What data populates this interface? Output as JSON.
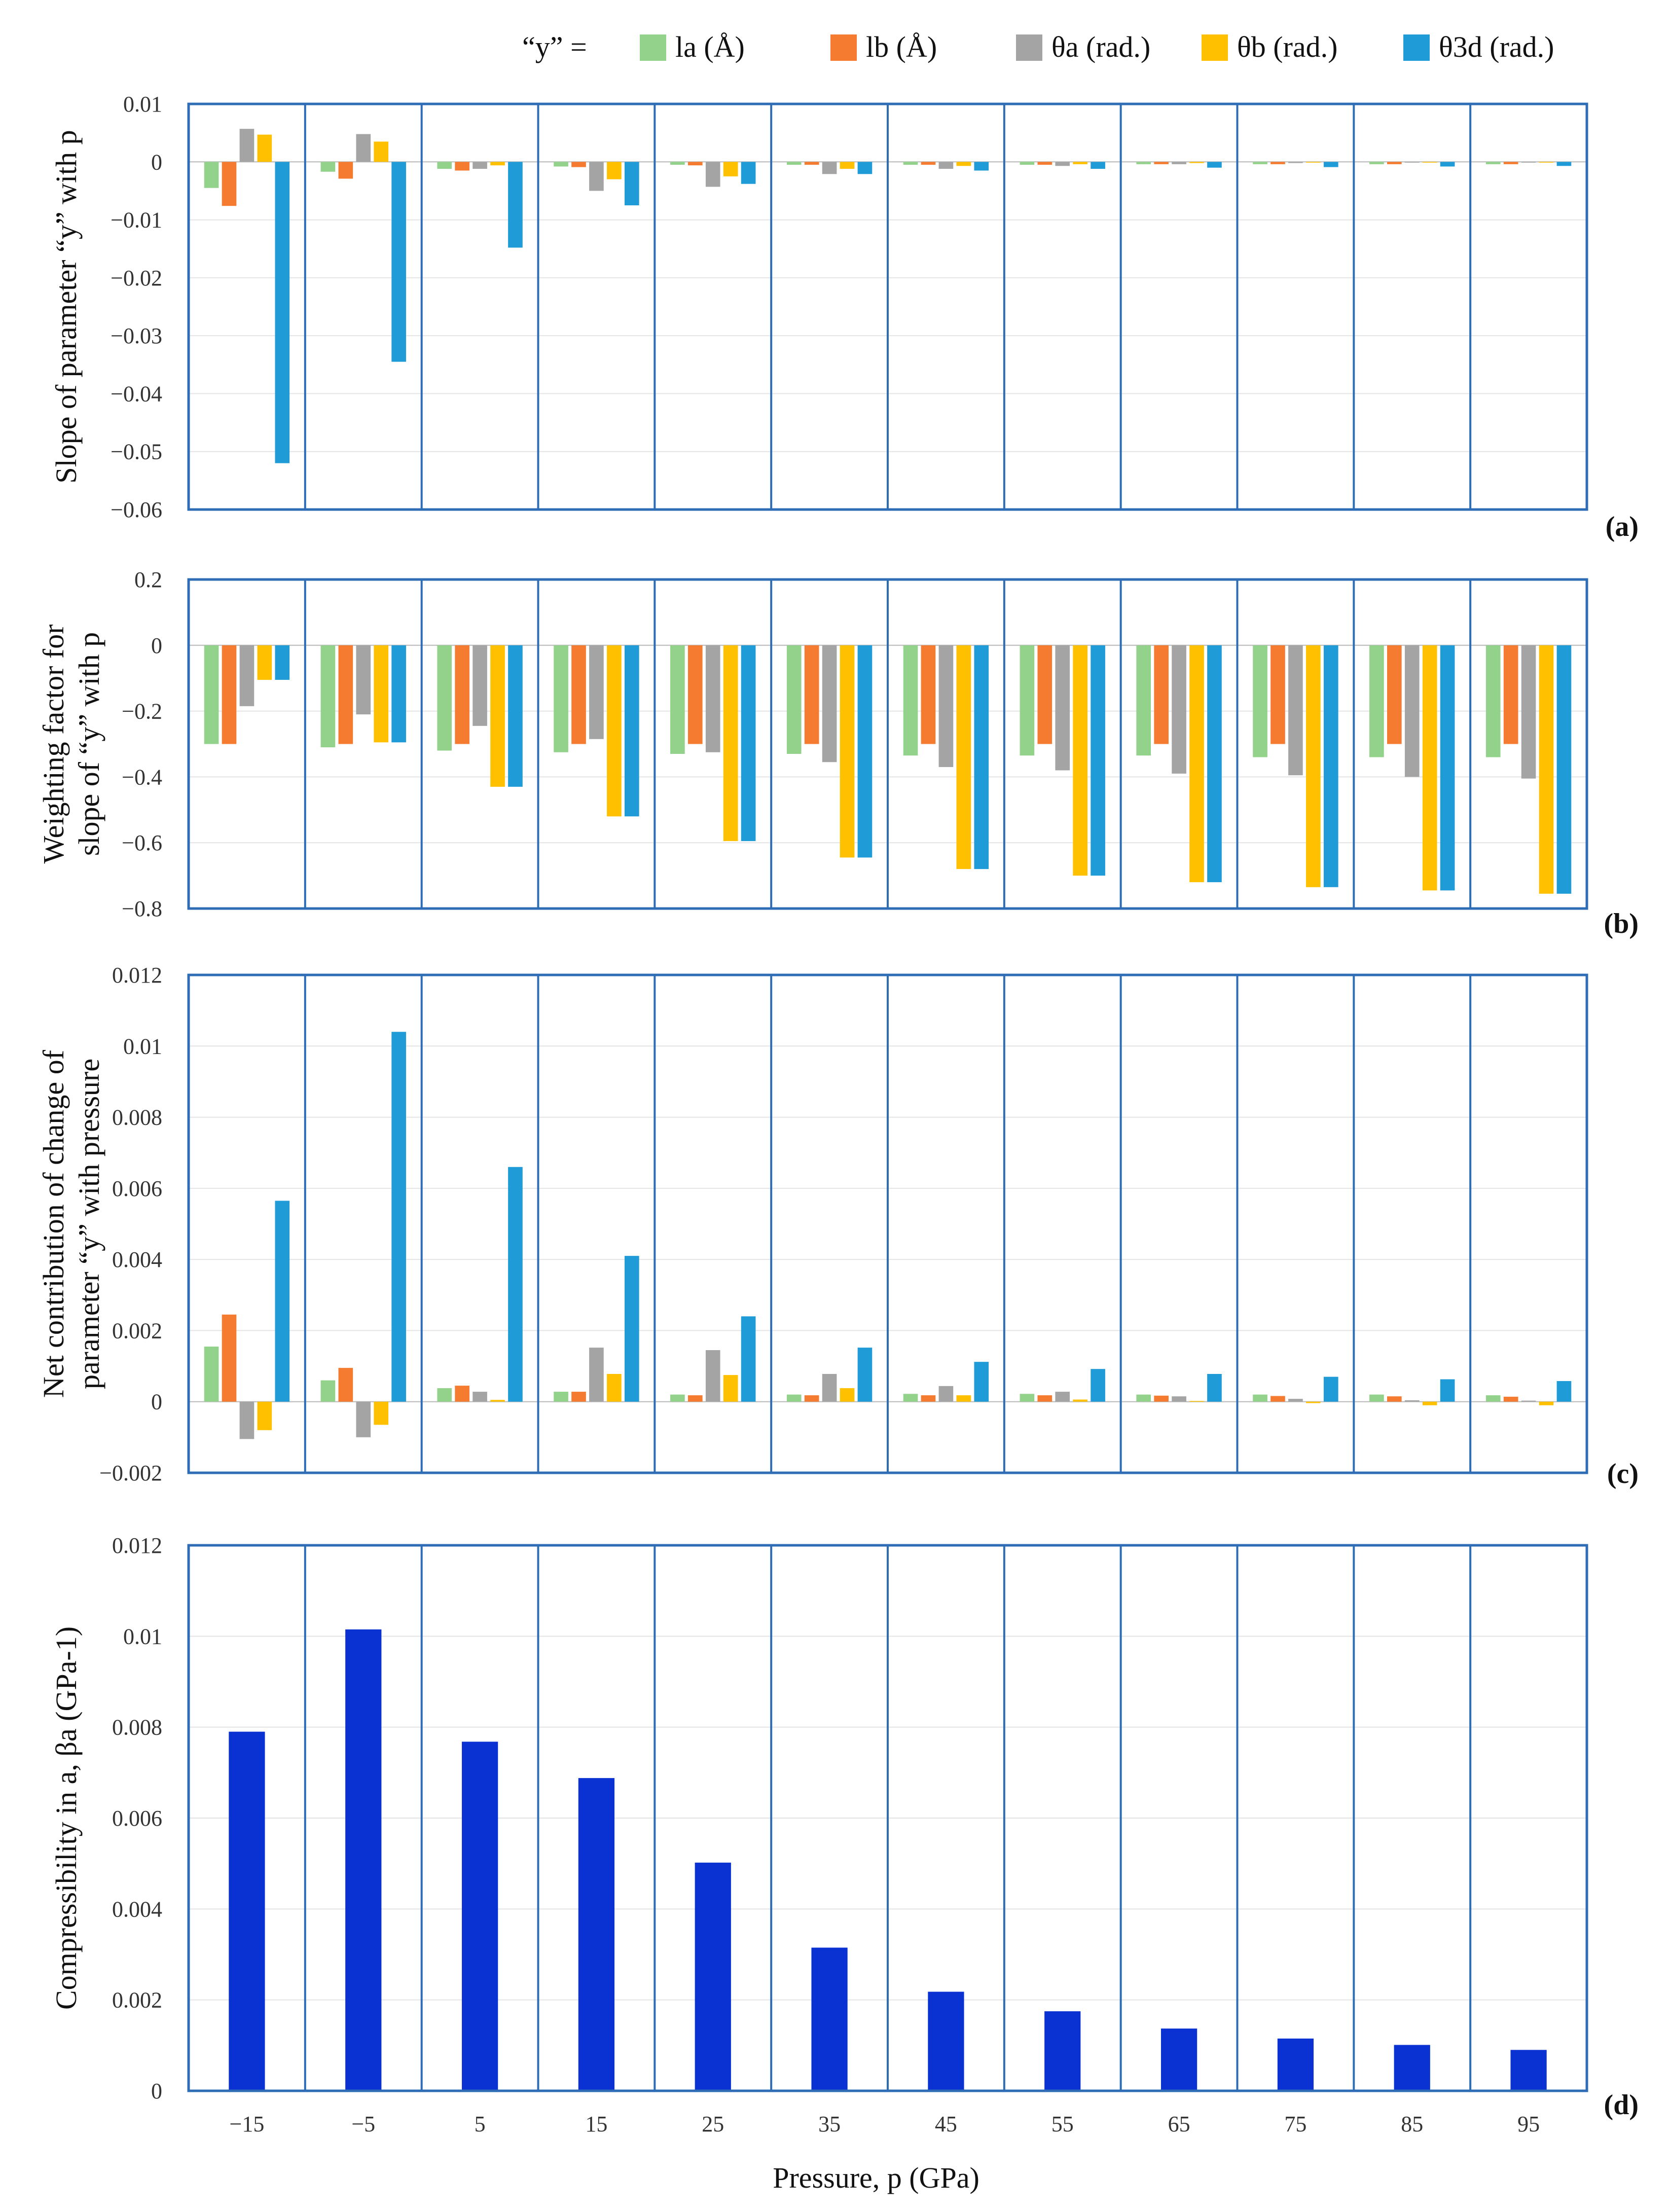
{
  "figure": {
    "legend_prefix": "“y” =",
    "x_axis_label": "Pressure, p (GPa)",
    "categories": [
      "−15",
      "−5",
      "5",
      "15",
      "25",
      "35",
      "45",
      "55",
      "65",
      "75",
      "85",
      "95"
    ]
  },
  "legend": [
    {
      "label": "la (Å)",
      "color": "#92d28a"
    },
    {
      "label": "lb (Å)",
      "color": "#f47b2f"
    },
    {
      "label": "θa (rad.)",
      "color": "#a4a4a4"
    },
    {
      "label": "θb (rad.)",
      "color": "#ffc000"
    },
    {
      "label": "θ3d (rad.)",
      "color": "#1f9bd7"
    }
  ],
  "chart_data": [
    {
      "panel": "(a)",
      "type": "bar",
      "ylabel": "Slope of parameter “y” with p",
      "ylim": [
        -0.06,
        0.01
      ],
      "yticks": [
        "0.01",
        "0",
        "−0.01",
        "−0.02",
        "−0.03",
        "−0.04",
        "−0.05",
        "−0.06"
      ],
      "yticks_values": [
        0.01,
        0,
        -0.01,
        -0.02,
        -0.03,
        -0.04,
        -0.05,
        -0.06
      ],
      "categories": [
        "−15",
        "−5",
        "5",
        "15",
        "25",
        "35",
        "45",
        "55",
        "65",
        "75",
        "85",
        "95"
      ],
      "series": [
        {
          "name": "la (Å)",
          "values": [
            -0.0045,
            -0.0017,
            -0.0012,
            -0.0008,
            -0.0005,
            -0.0005,
            -0.0005,
            -0.0005,
            -0.0004,
            -0.0004,
            -0.0004,
            -0.0004
          ]
        },
        {
          "name": "lb (Å)",
          "values": [
            -0.0076,
            -0.0029,
            -0.0015,
            -0.0009,
            -0.0006,
            -0.0005,
            -0.0005,
            -0.0005,
            -0.0004,
            -0.0004,
            -0.0004,
            -0.0004
          ]
        },
        {
          "name": "θa (rad.)",
          "values": [
            0.0057,
            0.0048,
            -0.0012,
            -0.005,
            -0.0043,
            -0.0021,
            -0.0012,
            -0.0007,
            -0.0004,
            -0.0002,
            -0.0001,
            -0.0001
          ]
        },
        {
          "name": "θb (rad.)",
          "values": [
            0.0047,
            0.0035,
            -0.0006,
            -0.003,
            -0.0025,
            -0.0012,
            -0.0007,
            -0.0004,
            -0.0002,
            -0.0001,
            -0.0001,
            -0.0001
          ]
        },
        {
          "name": "θ3d (rad.)",
          "values": [
            -0.052,
            -0.0345,
            -0.0148,
            -0.0075,
            -0.0038,
            -0.0021,
            -0.0015,
            -0.0012,
            -0.001,
            -0.0009,
            -0.0008,
            -0.0007
          ]
        }
      ]
    },
    {
      "panel": "(b)",
      "type": "bar",
      "ylabel": "Weighting factor for slope of “y” with p",
      "ylim": [
        -0.8,
        0.2
      ],
      "yticks": [
        "0.2",
        "0",
        "−0.2",
        "−0.4",
        "−0.6",
        "−0.8"
      ],
      "yticks_values": [
        0.2,
        0,
        -0.2,
        -0.4,
        -0.6,
        -0.8
      ],
      "categories": [
        "−15",
        "−5",
        "5",
        "15",
        "25",
        "35",
        "45",
        "55",
        "65",
        "75",
        "85",
        "95"
      ],
      "series": [
        {
          "name": "la (Å)",
          "values": [
            -0.3,
            -0.31,
            -0.32,
            -0.325,
            -0.33,
            -0.33,
            -0.335,
            -0.335,
            -0.335,
            -0.34,
            -0.34,
            -0.34
          ]
        },
        {
          "name": "lb (Å)",
          "values": [
            -0.3,
            -0.3,
            -0.3,
            -0.3,
            -0.3,
            -0.3,
            -0.3,
            -0.3,
            -0.3,
            -0.3,
            -0.3,
            -0.3
          ]
        },
        {
          "name": "θa (rad.)",
          "values": [
            -0.185,
            -0.21,
            -0.245,
            -0.285,
            -0.325,
            -0.355,
            -0.37,
            -0.38,
            -0.39,
            -0.395,
            -0.4,
            -0.405
          ]
        },
        {
          "name": "θb (rad.)",
          "values": [
            -0.105,
            -0.295,
            -0.43,
            -0.52,
            -0.595,
            -0.645,
            -0.68,
            -0.7,
            -0.72,
            -0.735,
            -0.745,
            -0.755
          ]
        },
        {
          "name": "θ3d (rad.)",
          "values": [
            -0.105,
            -0.295,
            -0.43,
            -0.52,
            -0.595,
            -0.645,
            -0.68,
            -0.7,
            -0.72,
            -0.735,
            -0.745,
            -0.755
          ]
        }
      ]
    },
    {
      "panel": "(c)",
      "type": "bar",
      "ylabel": "Net contribution of change of parameter “y” with pressure",
      "ylim": [
        -0.002,
        0.012
      ],
      "yticks": [
        "0.012",
        "0.01",
        "0.008",
        "0.006",
        "0.004",
        "0.002",
        "0",
        "−0.002"
      ],
      "yticks_values": [
        0.012,
        0.01,
        0.008,
        0.006,
        0.004,
        0.002,
        0,
        -0.002
      ],
      "categories": [
        "−15",
        "−5",
        "5",
        "15",
        "25",
        "35",
        "45",
        "55",
        "65",
        "75",
        "85",
        "95"
      ],
      "series": [
        {
          "name": "la (Å)",
          "values": [
            0.00155,
            0.0006,
            0.00038,
            0.00028,
            0.0002,
            0.0002,
            0.00022,
            0.00022,
            0.0002,
            0.0002,
            0.0002,
            0.00018
          ]
        },
        {
          "name": "lb (Å)",
          "values": [
            0.00245,
            0.00095,
            0.00045,
            0.00028,
            0.00018,
            0.00018,
            0.00018,
            0.00018,
            0.00017,
            0.00016,
            0.00015,
            0.00014
          ]
        },
        {
          "name": "θa (rad.)",
          "values": [
            -0.00105,
            -0.001,
            0.00028,
            0.00152,
            0.00145,
            0.00078,
            0.00044,
            0.00028,
            0.00015,
            8e-05,
            4e-05,
            3e-05
          ]
        },
        {
          "name": "θb (rad.)",
          "values": [
            -0.0008,
            -0.00065,
            5e-05,
            0.00078,
            0.00075,
            0.00038,
            0.00018,
            6e-05,
            2e-05,
            -4e-05,
            -0.0001,
            -0.0001
          ]
        },
        {
          "name": "θ3d (rad.)",
          "values": [
            0.00565,
            0.0104,
            0.0066,
            0.0041,
            0.0024,
            0.00152,
            0.00112,
            0.00092,
            0.00078,
            0.0007,
            0.00063,
            0.00058
          ]
        }
      ]
    },
    {
      "panel": "(d)",
      "type": "bar",
      "ylabel": "Compressibility in a, βa (GPa-1)",
      "ylim": [
        0,
        0.012
      ],
      "yticks": [
        "0.012",
        "0.01",
        "0.008",
        "0.006",
        "0.004",
        "0.002",
        "0"
      ],
      "yticks_values": [
        0.012,
        0.01,
        0.008,
        0.006,
        0.004,
        0.002,
        0
      ],
      "categories": [
        "−15",
        "−5",
        "5",
        "15",
        "25",
        "35",
        "45",
        "55",
        "65",
        "75",
        "85",
        "95"
      ],
      "series": [
        {
          "name": "βa",
          "values": [
            0.0079,
            0.01015,
            0.00768,
            0.00688,
            0.00502,
            0.00315,
            0.00218,
            0.00175,
            0.00137,
            0.00115,
            0.00101,
            0.0009
          ]
        }
      ]
    }
  ]
}
